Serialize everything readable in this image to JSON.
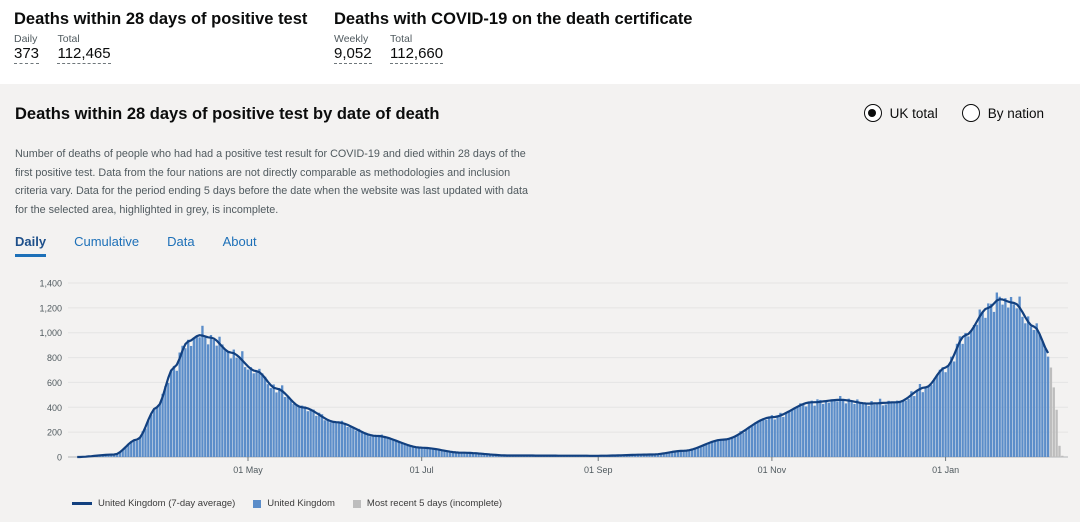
{
  "summary": {
    "tests": {
      "title": "Deaths within 28 days of positive test",
      "daily_label": "Daily",
      "daily_value": "373",
      "total_label": "Total",
      "total_value": "112,465"
    },
    "certificate": {
      "title": "Deaths with COVID-19 on the death certificate",
      "weekly_label": "Weekly",
      "weekly_value": "9,052",
      "total_label": "Total",
      "total_value": "112,660"
    }
  },
  "card": {
    "title": "Deaths within 28 days of positive test by date of death",
    "radio": {
      "uk_total": "UK total",
      "by_nation": "By nation",
      "selected": "uk_total"
    },
    "description": "Number of deaths of people who had had a positive test result for COVID-19 and died within 28 days of the first positive test. Data from the four nations are not directly comparable as methodologies and inclusion criteria vary. Data for the period ending 5 days before the date when the website was last updated with data for the selected area, highlighted in grey, is incomplete.",
    "tabs": [
      "Daily",
      "Cumulative",
      "Data",
      "About"
    ],
    "active_tab": "Daily"
  },
  "colors": {
    "bar": "#5b8dc9",
    "line": "#12407f",
    "incomplete": "#bdbdbd",
    "link": "#1d70b8"
  },
  "chart_data": {
    "type": "bar",
    "x_start": "2020-03-02",
    "x_end": "2021-01-27",
    "x_ticks": [
      "01 May",
      "01 Jul",
      "01 Sep",
      "01 Nov",
      "01 Jan"
    ],
    "y_ticks": [
      0,
      200,
      400,
      600,
      800,
      1000,
      1200,
      1400
    ],
    "ylim": [
      0,
      1400
    ],
    "legend": [
      "United Kingdom (7-day average)",
      "United Kingdom",
      "Most recent 5 days (incomplete)"
    ],
    "average_anchors": [
      [
        "2020-03-02",
        0
      ],
      [
        "2020-03-15",
        20
      ],
      [
        "2020-03-23",
        140
      ],
      [
        "2020-03-30",
        400
      ],
      [
        "2020-04-05",
        720
      ],
      [
        "2020-04-10",
        930
      ],
      [
        "2020-04-14",
        980
      ],
      [
        "2020-04-18",
        960
      ],
      [
        "2020-04-25",
        840
      ],
      [
        "2020-05-04",
        690
      ],
      [
        "2020-05-11",
        550
      ],
      [
        "2020-05-20",
        400
      ],
      [
        "2020-06-01",
        280
      ],
      [
        "2020-06-15",
        170
      ],
      [
        "2020-07-01",
        75
      ],
      [
        "2020-07-15",
        35
      ],
      [
        "2020-08-01",
        12
      ],
      [
        "2020-09-01",
        10
      ],
      [
        "2020-09-20",
        20
      ],
      [
        "2020-10-01",
        50
      ],
      [
        "2020-10-15",
        140
      ],
      [
        "2020-11-01",
        320
      ],
      [
        "2020-11-15",
        440
      ],
      [
        "2020-11-25",
        460
      ],
      [
        "2020-12-05",
        430
      ],
      [
        "2020-12-15",
        440
      ],
      [
        "2020-12-25",
        560
      ],
      [
        "2021-01-01",
        720
      ],
      [
        "2021-01-08",
        980
      ],
      [
        "2021-01-16",
        1200
      ],
      [
        "2021-01-20",
        1270
      ],
      [
        "2021-01-25",
        1240
      ],
      [
        "2021-02-01",
        1050
      ],
      [
        "2021-02-07",
        820
      ]
    ],
    "series_end": "2021-02-12",
    "incomplete_values": [
      720,
      560,
      380,
      90,
      10
    ]
  }
}
